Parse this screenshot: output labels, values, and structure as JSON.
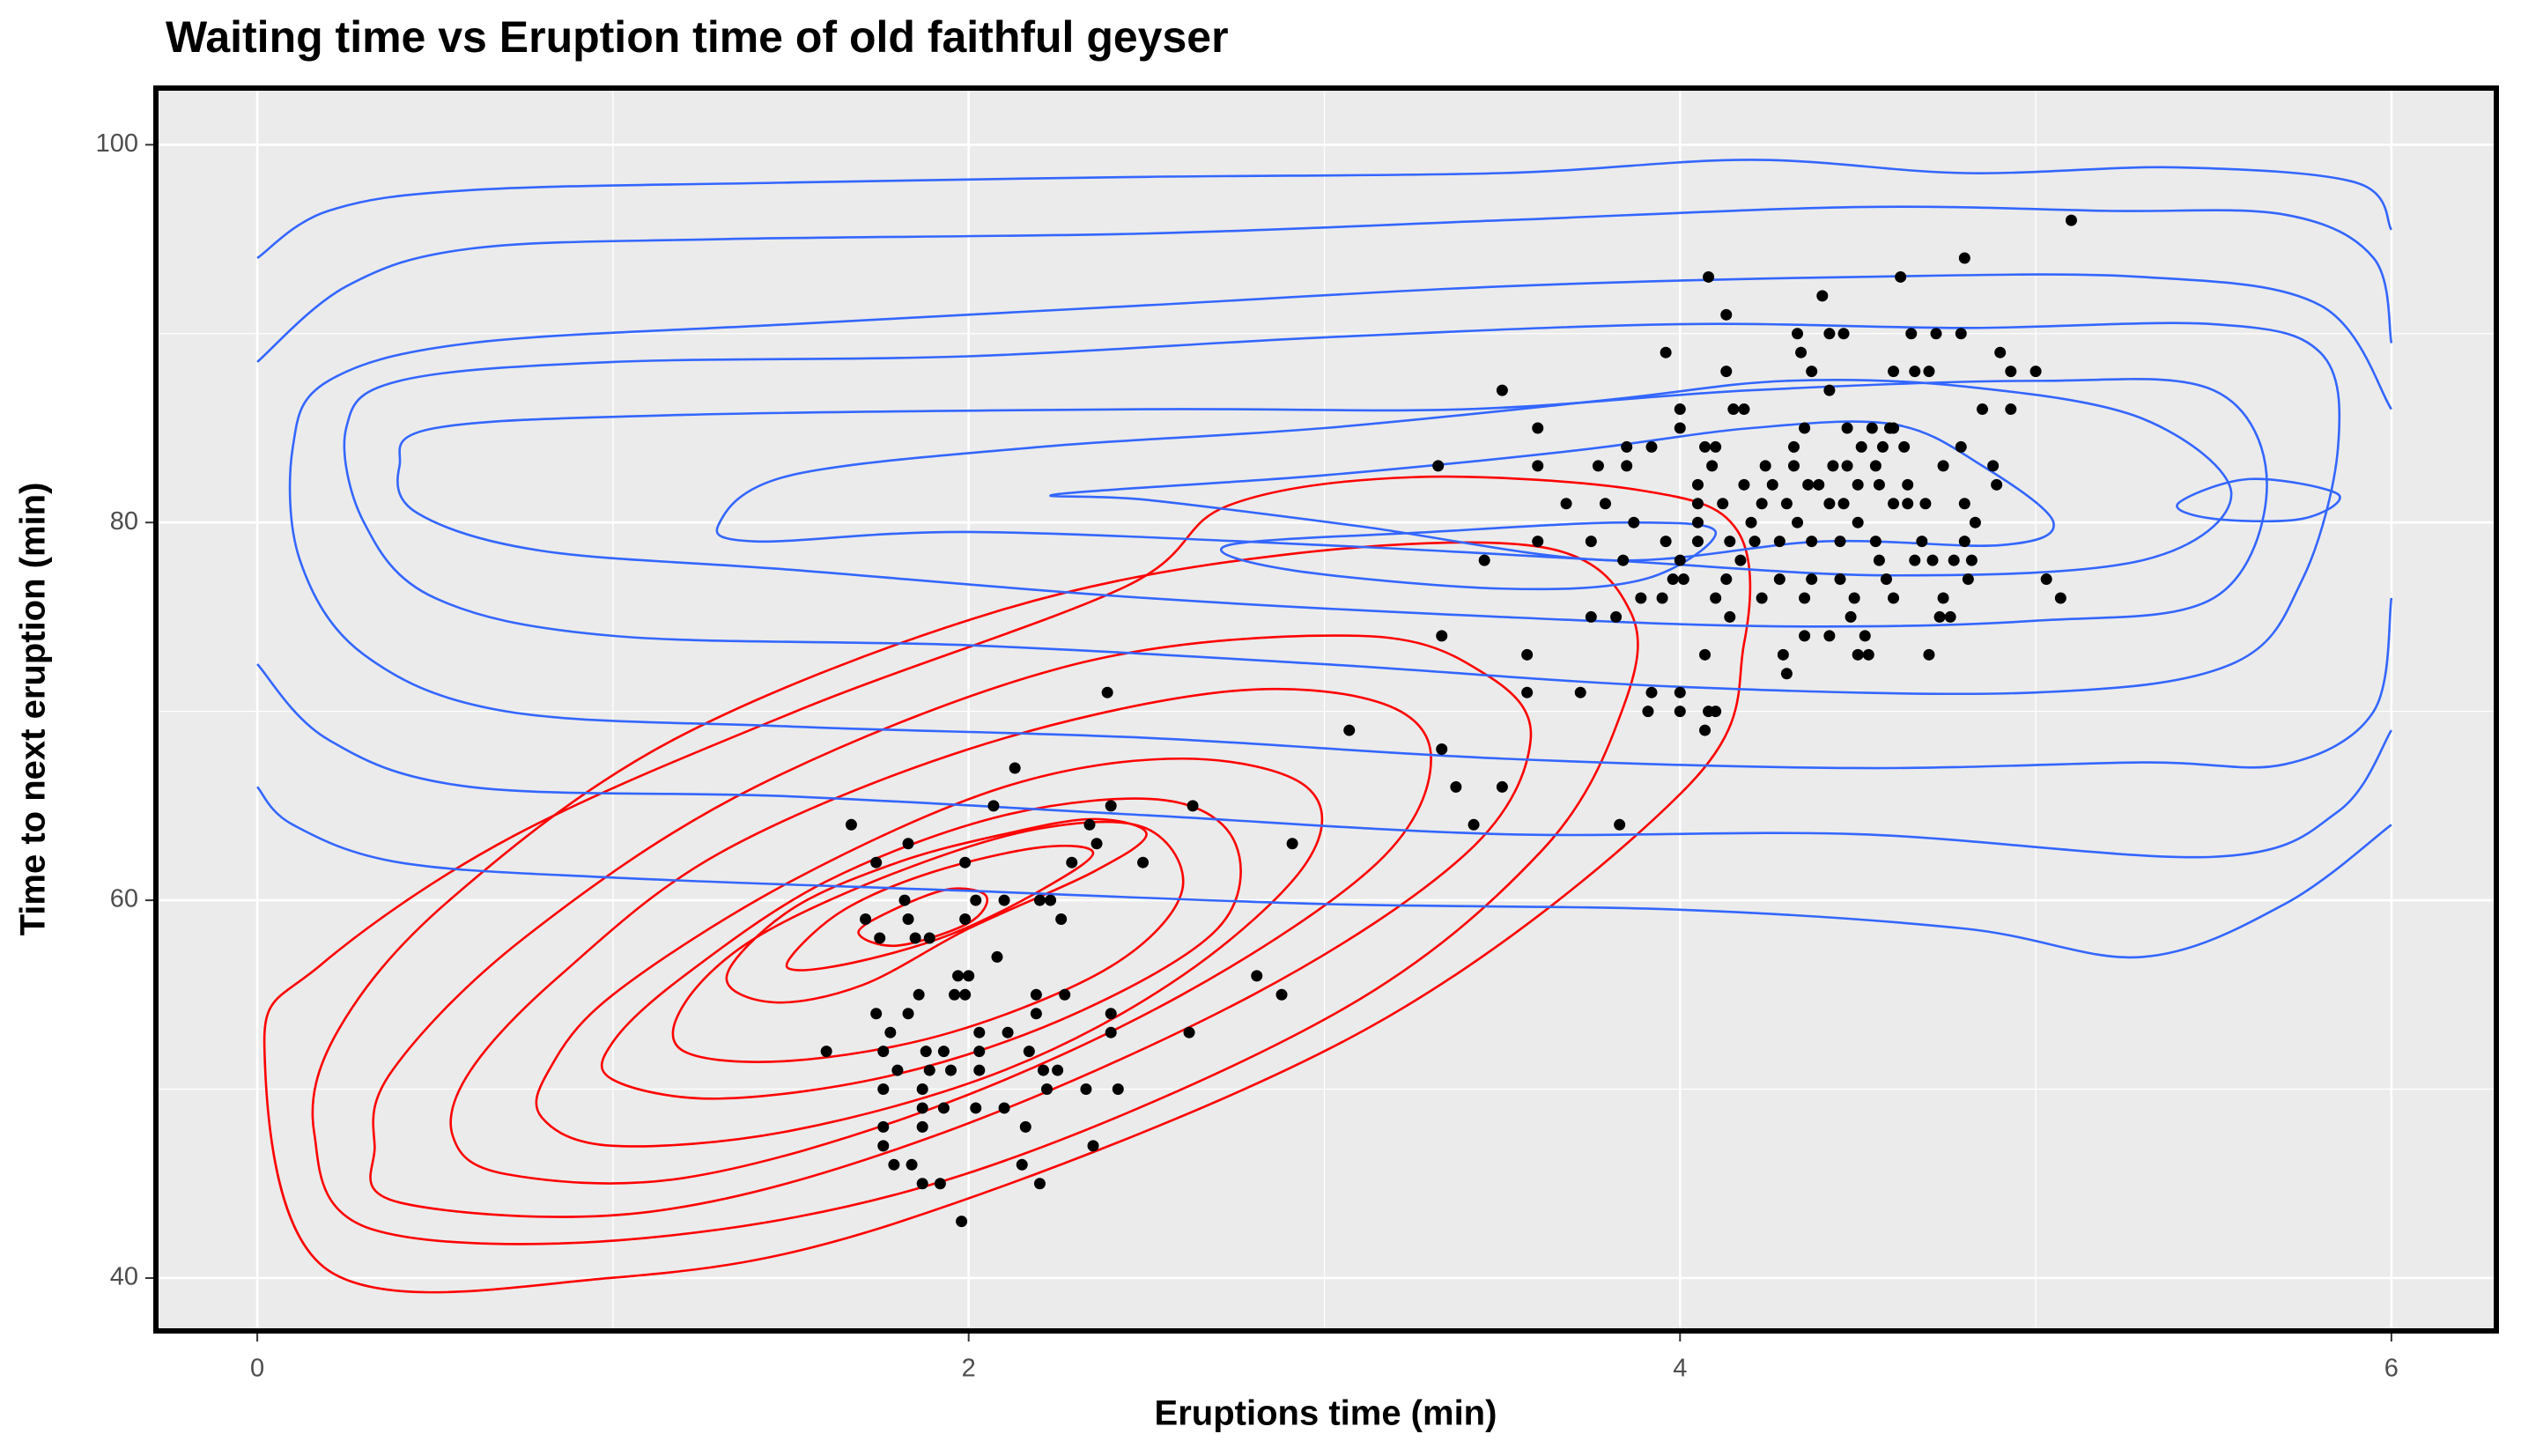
{
  "chart_data": {
    "type": "scatter",
    "title": "Waiting time vs Eruption time of old faithful geyser",
    "x_label": "Eruptions time (min)",
    "y_label": "Time to next eruption (min)",
    "xlim": [
      -0.285,
      6.295
    ],
    "ylim": [
      37.2,
      103
    ],
    "xticks": [
      0,
      2,
      4,
      6
    ],
    "yticks": [
      40,
      60,
      80,
      100
    ],
    "x_minor": [
      1,
      3,
      5
    ],
    "y_minor": [
      50,
      70,
      90
    ],
    "grid": true,
    "series": [
      {
        "type": "point",
        "color": "#000000",
        "x": [
          1.67,
          1.71,
          1.74,
          1.75,
          1.83,
          1.82,
          1.83,
          1.85,
          1.89,
          1.99,
          1.99,
          2.02,
          2.07,
          2.13,
          2.1,
          2.08,
          2.2,
          2.23,
          2.26,
          2.29,
          2.34,
          2.36,
          2.4,
          2.39,
          2.49,
          2.63,
          3.07,
          2.91,
          1.6,
          1.74,
          1.76,
          1.8,
          1.78,
          1.83,
          1.86,
          1.88,
          1.89,
          1.87,
          1.87,
          1.87,
          1.95,
          1.93,
          1.96,
          1.97,
          2.0,
          1.99,
          2.03,
          2.03,
          2.03,
          2.02,
          1.93,
          1.76,
          1.76,
          1.76,
          1.79,
          1.84,
          1.87,
          1.92,
          1.98,
          2.1,
          2.16,
          2.15,
          2.2,
          2.11,
          2.17,
          2.19,
          2.19,
          2.21,
          2.27,
          2.22,
          2.25,
          2.33,
          2.35,
          2.42,
          2.4,
          2.4,
          2.62,
          2.81,
          2.88,
          3.32,
          3.33,
          3.33,
          3.37,
          3.42,
          3.5,
          3.45,
          3.5,
          3.6,
          3.6,
          3.57,
          3.57,
          3.6,
          3.68,
          3.72,
          3.75,
          3.75,
          3.77,
          3.79,
          3.82,
          3.83,
          3.84,
          3.85,
          3.85,
          3.87,
          3.89,
          3.91,
          3.92,
          3.92,
          3.95,
          3.96,
          3.98,
          4.0,
          4.0,
          3.96,
          4.0,
          4.0,
          4.0,
          4.01,
          4.05,
          4.05,
          4.05,
          4.05,
          4.07,
          4.07,
          4.08,
          4.07,
          4.1,
          4.1,
          4.08,
          4.09,
          4.1,
          4.13,
          4.13,
          4.15,
          4.12,
          4.14,
          4.14,
          4.13,
          4.17,
          4.18,
          4.18,
          4.2,
          4.21,
          4.23,
          4.24,
          4.23,
          4.26,
          4.28,
          4.28,
          4.29,
          4.3,
          4.3,
          4.32,
          4.32,
          4.33,
          4.34,
          4.33,
          4.35,
          4.35,
          4.35,
          4.37,
          4.36,
          4.37,
          4.37,
          4.39,
          4.4,
          4.42,
          4.42,
          4.42,
          4.43,
          4.42,
          4.46,
          4.45,
          4.45,
          4.46,
          4.47,
          4.47,
          4.48,
          4.49,
          4.5,
          4.5,
          4.5,
          4.51,
          4.52,
          4.53,
          4.54,
          4.55,
          4.55,
          4.56,
          4.56,
          4.57,
          4.58,
          4.59,
          4.6,
          4.6,
          4.6,
          4.6,
          4.62,
          4.63,
          4.64,
          4.64,
          4.65,
          4.66,
          4.66,
          4.68,
          4.69,
          4.7,
          4.71,
          4.73,
          4.74,
          4.7,
          4.72,
          4.74,
          4.76,
          4.77,
          4.79,
          4.79,
          4.8,
          4.8,
          4.8,
          4.81,
          4.82,
          4.83,
          4.85,
          4.88,
          4.89,
          4.9,
          4.93,
          4.93,
          5.0,
          5.03,
          5.07,
          5.1
        ],
        "values": [
          64,
          59,
          62,
          58,
          63,
          60,
          59,
          58,
          58,
          62,
          59,
          60,
          65,
          67,
          60,
          57,
          60,
          60,
          59,
          62,
          64,
          63,
          65,
          71,
          62,
          65,
          69,
          63,
          52,
          54,
          52,
          51,
          53,
          54,
          55,
          52,
          51,
          50,
          49,
          48,
          51,
          52,
          55,
          56,
          56,
          55,
          53,
          52,
          51,
          49,
          49,
          50,
          48,
          47,
          46,
          46,
          45,
          45,
          43,
          49,
          48,
          46,
          45,
          53,
          52,
          54,
          55,
          51,
          55,
          50,
          51,
          50,
          47,
          50,
          54,
          53,
          53,
          56,
          55,
          83,
          74,
          68,
          66,
          64,
          66,
          78,
          87,
          85,
          83,
          73,
          71,
          79,
          81,
          71,
          75,
          79,
          83,
          81,
          75,
          64,
          78,
          83,
          84,
          80,
          76,
          70,
          71,
          84,
          76,
          79,
          77,
          70,
          71,
          89,
          86,
          85,
          78,
          77,
          79,
          80,
          81,
          82,
          84,
          69,
          70,
          73,
          76,
          70,
          93,
          83,
          84,
          91,
          88,
          86,
          81,
          79,
          75,
          77,
          78,
          82,
          86,
          80,
          79,
          76,
          83,
          81,
          82,
          79,
          77,
          73,
          72,
          81,
          84,
          83,
          90,
          89,
          80,
          85,
          74,
          76,
          88,
          82,
          77,
          79,
          82,
          92,
          81,
          87,
          90,
          83,
          74,
          90,
          77,
          79,
          81,
          83,
          85,
          75,
          76,
          73,
          80,
          82,
          84,
          74,
          73,
          85,
          83,
          79,
          78,
          82,
          84,
          77,
          85,
          88,
          81,
          76,
          85,
          93,
          84,
          82,
          81,
          90,
          88,
          78,
          79,
          81,
          73,
          78,
          75,
          83,
          88,
          90,
          76,
          75,
          78,
          90,
          84,
          94,
          79,
          81,
          77,
          78,
          80,
          86,
          83,
          82,
          89,
          88,
          86,
          88,
          77,
          76,
          96
        ]
      },
      {
        "type": "contour",
        "color": "#ff0000",
        "closed": true,
        "x": [
          0.02,
          0.2,
          0.99,
          1.81,
          3.12,
          4.02,
          4.18,
          4.16,
          3.89,
          3.25,
          2.73,
          2.44,
          1.54,
          0.72,
          0.18
        ],
        "values": [
          52.3,
          40.4,
          40,
          43,
          53.2,
          66,
          73.6,
          79.6,
          81.7,
          82.4,
          80.9,
          76.6,
          70.2,
          63.4,
          56.6
        ]
      },
      {
        "type": "contour",
        "color": "#ff0000",
        "closed": true,
        "x": [
          0.16,
          0.32,
          1.08,
          1.99,
          3.03,
          3.61,
          3.84,
          3.86,
          3.61,
          2.89,
          2.08,
          1.17,
          0.54,
          0.23
        ],
        "values": [
          47.7,
          42.6,
          42.1,
          45.5,
          54,
          62.6,
          70.2,
          75.3,
          78.7,
          78.3,
          75.3,
          68.5,
          60,
          53.2
        ]
      },
      {
        "type": "contour",
        "color": "#ff0000",
        "closed": true,
        "x": [
          0.33,
          0.4,
          1.1,
          1.9,
          2.8,
          3.4,
          3.58,
          3.45,
          3.1,
          2.3,
          1.4,
          0.75,
          0.38
        ],
        "values": [
          47,
          44,
          43.5,
          47.5,
          55,
          62.5,
          68.5,
          72,
          74,
          72.5,
          66,
          58,
          51
        ]
      },
      {
        "type": "contour",
        "color": "#ff0000",
        "closed": true,
        "x": [
          0.55,
          0.7,
          1.2,
          1.9,
          2.6,
          3.15,
          3.3,
          3.15,
          2.7,
          2.0,
          1.3,
          0.85,
          0.6
        ],
        "values": [
          47.5,
          45.5,
          45.3,
          49,
          55,
          62,
          67.5,
          70.5,
          71,
          68,
          62.5,
          56,
          51
        ]
      },
      {
        "type": "contour",
        "color": "#ff0000",
        "closed": true,
        "x": [
          0.8,
          1.0,
          1.5,
          2.1,
          2.6,
          2.95,
          2.95,
          2.6,
          2.1,
          1.5,
          1.0,
          0.82
        ],
        "values": [
          48.5,
          47,
          47.8,
          51,
          56,
          62,
          66,
          67.5,
          66,
          61,
          55,
          51
        ]
      },
      {
        "type": "contour",
        "color": "#ff0000",
        "closed": true,
        "x": [
          1.0,
          1.3,
          1.8,
          2.3,
          2.7,
          2.75,
          2.55,
          2.1,
          1.6,
          1.2,
          1.0
        ],
        "values": [
          50.5,
          49.5,
          50.8,
          54,
          58.5,
          63,
          65.3,
          64.5,
          61,
          56,
          52.5
        ]
      },
      {
        "type": "contour",
        "color": "#ff0000",
        "closed": true,
        "x": [
          1.2,
          1.5,
          1.95,
          2.4,
          2.6,
          2.5,
          2.2,
          1.8,
          1.4,
          1.2
        ],
        "values": [
          52,
          51.5,
          53,
          56.5,
          60.5,
          63.8,
          63.8,
          61.5,
          58,
          54.5
        ]
      },
      {
        "type": "contour",
        "color": "#ff0000",
        "closed": true,
        "x": [
          1.32,
          1.5,
          1.8,
          2.1,
          2.35,
          2.5,
          2.35,
          2.0,
          1.7,
          1.45
        ],
        "values": [
          56,
          59.5,
          62,
          63.5,
          64.3,
          63.5,
          61.5,
          58.5,
          55.5,
          54.6
        ]
      },
      {
        "type": "contour",
        "color": "#ff0000",
        "closed": true,
        "x": [
          1.5,
          1.65,
          1.9,
          2.2,
          2.35,
          2.2,
          1.95,
          1.7,
          1.52
        ],
        "values": [
          57,
          59.5,
          61.5,
          62.8,
          62.5,
          60.5,
          58.2,
          56.8,
          56.3
        ]
      },
      {
        "type": "contour",
        "color": "#ff0000",
        "closed": true,
        "x": [
          1.69,
          1.8,
          1.95,
          2.05,
          2.0,
          1.8
        ],
        "values": [
          58.3,
          59.6,
          60.6,
          60.2,
          58.8,
          57.6
        ]
      },
      {
        "type": "contour",
        "color": "#3366ff",
        "closed": false,
        "x": [
          0,
          0.2,
          0.6,
          1.5,
          2.5,
          3.5,
          4.2,
          4.8,
          5.4,
          5.9,
          6
        ],
        "values": [
          94,
          96.5,
          97.6,
          98,
          98.3,
          98.5,
          99.2,
          98.5,
          98.8,
          98,
          95.5
        ]
      },
      {
        "type": "contour",
        "color": "#3366ff",
        "closed": false,
        "x": [
          0,
          0.1,
          0.4,
          1,
          2,
          3,
          4,
          4.8,
          5.3,
          5.7,
          6
        ],
        "values": [
          66,
          64,
          62,
          61.2,
          60.5,
          59.8,
          59.5,
          58.5,
          57,
          59.8,
          64
        ]
      },
      {
        "type": "contour",
        "color": "#3366ff",
        "closed": false,
        "x": [
          0,
          0.25,
          0.6,
          1.3,
          2.5,
          3.5,
          4.5,
          5.2,
          5.7,
          5.95,
          6
        ],
        "values": [
          88.5,
          92.5,
          94.5,
          95,
          95.3,
          96,
          96.7,
          96.5,
          96.3,
          94,
          89.5
        ]
      },
      {
        "type": "contour",
        "color": "#3366ff",
        "closed": false,
        "x": [
          0,
          0.2,
          0.6,
          1.5,
          2.5,
          3.5,
          4.5,
          5.5,
          5.85,
          6
        ],
        "values": [
          72.5,
          68.5,
          66,
          65.5,
          64.5,
          63.5,
          63.5,
          62.3,
          64.7,
          69
        ]
      },
      {
        "type": "contour",
        "color": "#3366ff",
        "closed": false,
        "x": [
          6,
          5.8,
          5.3,
          4.5,
          3.5,
          2.5,
          1.5,
          0.6,
          0.2,
          0.1,
          0.12,
          0.3,
          0.7,
          1.5,
          2.5,
          3.5,
          4.5,
          5.3,
          5.7,
          5.95,
          6
        ],
        "values": [
          86,
          91.5,
          93,
          93,
          92.5,
          91.5,
          90.5,
          89.5,
          87.5,
          84,
          78,
          73,
          70,
          69.2,
          68.6,
          67.5,
          67,
          67.3,
          67.2,
          70,
          76
        ]
      },
      {
        "type": "contour",
        "color": "#3366ff",
        "closed": true,
        "x": [
          0.25,
          0.4,
          1,
          2,
          3,
          4,
          4.8,
          5.5,
          5.8,
          5.85,
          5.75,
          5.55,
          5,
          4,
          3,
          2,
          1,
          0.5,
          0.3
        ],
        "values": [
          85,
          87.5,
          88.5,
          88.8,
          89.8,
          90.5,
          90.3,
          90.5,
          89,
          84,
          77,
          72.5,
          71,
          71.3,
          72.5,
          73.5,
          74,
          76,
          80
        ]
      },
      {
        "type": "contour",
        "color": "#3366ff",
        "closed": true,
        "x": [
          0.4,
          0.5,
          1.2,
          2.5,
          3.4,
          4.2,
          5,
          5.5,
          5.65,
          5.5,
          5.0,
          4.3,
          3.5,
          2.5,
          1.5,
          0.8,
          0.45
        ],
        "values": [
          83,
          85,
          85.7,
          86,
          86,
          87,
          87.5,
          87,
          82,
          76,
          74.8,
          74.5,
          75,
          76,
          77.5,
          78.5,
          80.5
        ]
      },
      {
        "type": "contour",
        "color": "#3366ff",
        "closed": true,
        "x": [
          1.3,
          1.5,
          2.2,
          3,
          3.8,
          4.3,
          4.8,
          5.3,
          5.55,
          5.3,
          4.6,
          3.8,
          3,
          2,
          1.4
        ],
        "values": [
          80,
          82.5,
          84,
          85,
          86.5,
          87.5,
          87.2,
          85.5,
          81.5,
          78,
          77.2,
          78,
          78.8,
          79.5,
          79
        ]
      },
      {
        "type": "contour",
        "color": "#3366ff",
        "closed": true,
        "x": [
          2.25,
          3,
          3.7,
          4.2,
          4.6,
          4.85,
          5.05,
          4.9,
          4.4,
          3.8,
          3.1,
          2.5
        ],
        "values": [
          81.5,
          82.5,
          83.8,
          85,
          85.2,
          83,
          80,
          78.8,
          79,
          78,
          79.8,
          81.2
        ]
      },
      {
        "type": "contour",
        "color": "#3366ff",
        "closed": true,
        "x": [
          2.73,
          3.3,
          3.85,
          4.1,
          3.9,
          3.5,
          2.9
        ],
        "values": [
          78.8,
          79.5,
          80,
          79.5,
          77,
          76.5,
          77.5
        ]
      },
      {
        "type": "contour",
        "color": "#3366ff",
        "closed": true,
        "x": [
          5.4,
          5.6,
          5.85,
          5.75,
          5.5
        ],
        "values": [
          81,
          82.3,
          81.5,
          80.2,
          80.2
        ]
      }
    ]
  }
}
